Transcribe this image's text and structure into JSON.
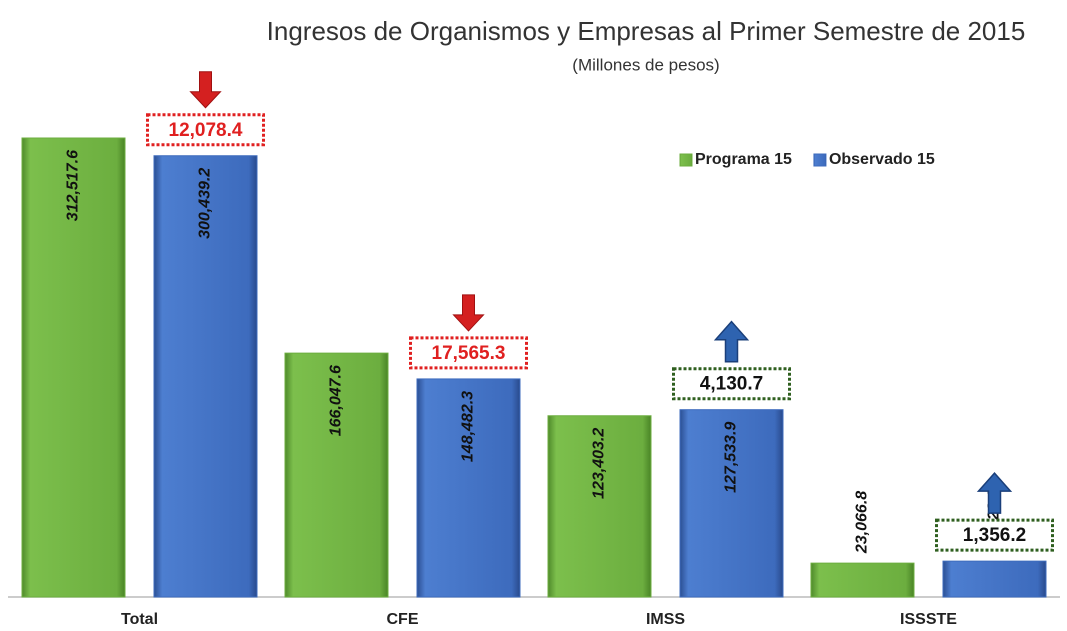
{
  "chart_data": {
    "type": "bar",
    "title": "Ingresos de Organismos y Empresas al Primer Semestre de 2015",
    "subtitle": "(Millones de pesos)",
    "categories": [
      "Total",
      "CFE",
      "IMSS",
      "ISSSTE"
    ],
    "series": [
      {
        "name": "Programa 15",
        "color": "#6cae3f",
        "values": [
          312517.6,
          166047.6,
          123403.2,
          23066.8
        ],
        "value_labels": [
          "312,517.6",
          "166,047.6",
          "123,403.2",
          "23,066.8"
        ]
      },
      {
        "name": "Observado 15",
        "color": "#3d6bbd",
        "values": [
          300439.2,
          148482.3,
          127533.9,
          24423.0
        ],
        "value_labels": [
          "300,439.2",
          "148,482.3",
          "127,533.9",
          "24,423.0"
        ]
      }
    ],
    "differences": [
      "12,078.4",
      "17,565.3",
      "4,130.7",
      "1,356.2"
    ],
    "difference_directions": [
      "down",
      "down",
      "up",
      "up"
    ],
    "legend": "top-right"
  }
}
